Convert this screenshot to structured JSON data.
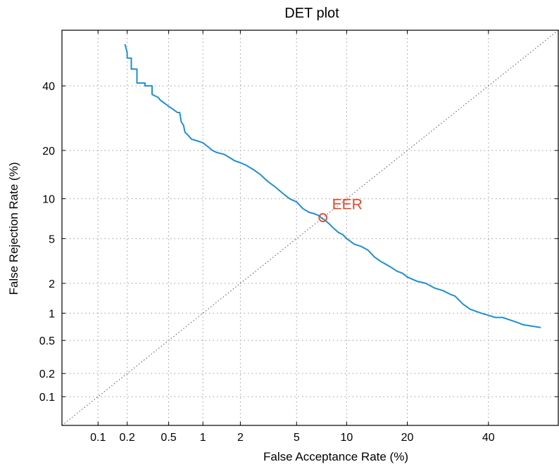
{
  "chart_data": {
    "type": "line",
    "title": "DET plot",
    "xlabel": "False Acceptance Rate (%)",
    "ylabel": "False Rejection Rate (%)",
    "x_scale": "probit",
    "y_scale": "probit",
    "xlim": [
      0.04,
      60
    ],
    "ylim": [
      0.04,
      60
    ],
    "x_ticks": [
      0.1,
      0.2,
      0.5,
      1,
      2,
      5,
      10,
      20,
      40
    ],
    "x_tick_labels": [
      "0.1",
      "0.2",
      "0.5",
      "1",
      "2",
      "5",
      "10",
      "20",
      "40"
    ],
    "y_ticks": [
      0.1,
      0.2,
      0.5,
      1,
      2,
      5,
      10,
      20,
      40
    ],
    "y_tick_labels": [
      "0.1",
      "0.2",
      "0.5",
      "1",
      "2",
      "5",
      "10",
      "20",
      "40"
    ],
    "grid": true,
    "colors": {
      "curve": "#1f8fd0",
      "eer": "#e8472a",
      "diagonal": "#555555"
    },
    "series": [
      {
        "x": [
          0.19,
          0.2,
          0.2,
          0.22,
          0.22,
          0.25,
          0.25,
          0.3,
          0.3,
          0.35,
          0.35,
          0.4,
          0.42,
          0.46,
          0.5,
          0.55,
          0.6,
          0.63,
          0.65,
          0.68,
          0.7,
          0.75,
          0.8,
          0.9,
          1.0,
          1.1,
          1.2,
          1.3,
          1.5,
          1.7,
          1.8,
          2.0,
          2.2,
          2.5,
          2.8,
          3.2,
          3.6,
          4.0,
          4.5,
          5.0,
          5.5,
          6.0,
          6.5,
          7.0,
          7.1,
          7.5,
          8.0,
          8.5,
          9.0,
          9.5,
          10.0,
          11.0,
          12.0,
          13.0,
          14.0,
          15.0,
          16.0,
          17.0,
          18.0,
          19.0,
          20.0,
          22.0,
          24.0,
          26.0,
          28.0,
          30.0,
          31.0,
          33.0,
          35.0,
          38.0,
          40.0,
          42.0,
          44.0,
          46.0,
          48.0,
          50.0,
          55.0
        ],
        "y": [
          55.0,
          52.0,
          50.0,
          50.0,
          46.0,
          46.0,
          41.0,
          41.0,
          40.0,
          40.0,
          37.0,
          36.0,
          35.0,
          34.0,
          33.0,
          32.0,
          31.0,
          31.0,
          28.0,
          27.0,
          25.0,
          24.0,
          23.0,
          22.5,
          22.0,
          21.0,
          20.0,
          19.5,
          19.0,
          18.0,
          17.5,
          17.0,
          16.5,
          15.5,
          14.5,
          13.0,
          12.0,
          11.0,
          10.0,
          9.5,
          8.5,
          8.0,
          7.8,
          7.5,
          7.3,
          7.0,
          6.5,
          6.0,
          5.6,
          5.4,
          5.0,
          4.5,
          4.3,
          4.0,
          3.5,
          3.2,
          3.0,
          2.8,
          2.6,
          2.5,
          2.3,
          2.1,
          2.0,
          1.8,
          1.7,
          1.55,
          1.5,
          1.25,
          1.1,
          1.0,
          0.95,
          0.9,
          0.9,
          0.85,
          0.8,
          0.75,
          0.7
        ]
      }
    ],
    "annotations": [
      {
        "text": "EER",
        "x": 7.3,
        "y": 7.3
      }
    ]
  }
}
